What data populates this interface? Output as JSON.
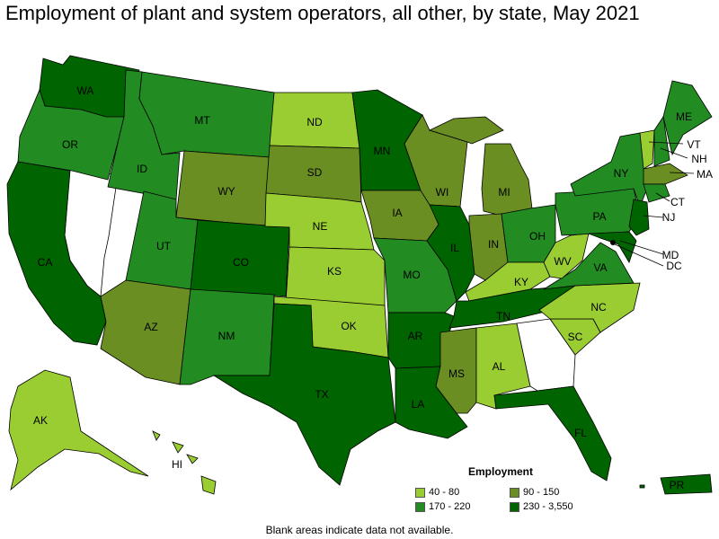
{
  "title": "Employment of plant and system operators, all other, by state, May 2021",
  "footnote": "Blank areas indicate data not available.",
  "legend": {
    "title": "Employment",
    "items": [
      {
        "label": "40 - 80",
        "color": "#9acd32"
      },
      {
        "label": "90 - 150",
        "color": "#6b8e23"
      },
      {
        "label": "170 - 220",
        "color": "#228b22"
      },
      {
        "label": "230 - 3,550",
        "color": "#006400"
      }
    ]
  },
  "states": {
    "WA": "WA",
    "OR": "OR",
    "CA": "CA",
    "ID": "ID",
    "MT": "MT",
    "WY": "WY",
    "UT": "UT",
    "CO": "CO",
    "AZ": "AZ",
    "NM": "NM",
    "ND": "ND",
    "SD": "SD",
    "NE": "NE",
    "KS": "KS",
    "OK": "OK",
    "TX": "TX",
    "MN": "MN",
    "IA": "IA",
    "MO": "MO",
    "AR": "AR",
    "LA": "LA",
    "WI": "WI",
    "IL": "IL",
    "MS": "MS",
    "MI": "MI",
    "IN": "IN",
    "KY": "KY",
    "TN": "TN",
    "AL": "AL",
    "OH": "OH",
    "WV": "WV",
    "VA": "VA",
    "NC": "NC",
    "SC": "SC",
    "FL": "FL",
    "PA": "PA",
    "NY": "NY",
    "ME": "ME",
    "VT": "VT",
    "NH": "NH",
    "MA": "MA",
    "CT": "CT",
    "NJ": "NJ",
    "MD": "MD",
    "DC": "DC",
    "AK": "AK",
    "HI": "HI",
    "PR": "PR"
  }
}
